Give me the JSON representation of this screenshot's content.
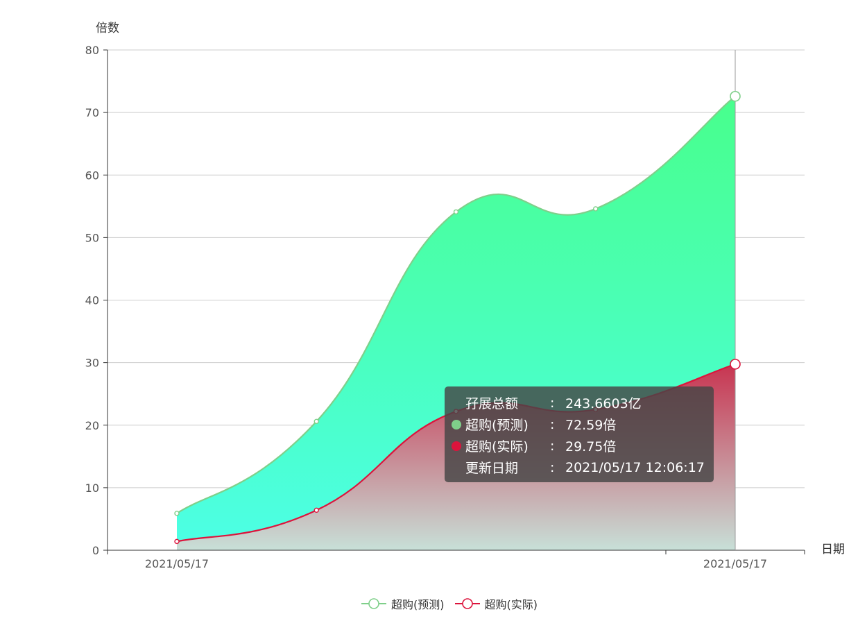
{
  "chart_data": {
    "type": "area",
    "x": [
      "2021/05/17",
      "",
      "",
      "",
      "2021/05/17"
    ],
    "series": [
      {
        "name": "超购(预测)",
        "values": [
          5.9,
          20.6,
          54.1,
          54.6,
          72.59
        ],
        "color": "#7fcf8a",
        "fill_top": "#48ff8c",
        "fill_bottom": "#4cffe6"
      },
      {
        "name": "超购(实际)",
        "values": [
          1.4,
          6.4,
          22.2,
          22.5,
          29.75
        ],
        "color": "#dc143c",
        "fill_top": "#c8314e",
        "fill_bottom": "#c8e0d8"
      }
    ],
    "x_tick_labels": [
      "2021/05/17",
      "2021/05/17"
    ],
    "xlabel": "日期",
    "ylabel": "倍数",
    "ylim": [
      0,
      80
    ],
    "yticks": [
      0,
      10,
      20,
      30,
      40,
      50,
      60,
      70,
      80
    ],
    "grid": true,
    "smooth": true,
    "legend_position": "bottom-center",
    "highlighted_index": 4
  },
  "tooltip": {
    "rows": [
      {
        "label": "孖展总额",
        "sep": ":",
        "value": "243.6603亿",
        "dot": null
      },
      {
        "label": "超购(预测)",
        "sep": ":",
        "value": "72.59倍",
        "dot": "#7fcf8a"
      },
      {
        "label": "超购(实际)",
        "sep": ":",
        "value": "29.75倍",
        "dot": "#dc143c"
      },
      {
        "label": "更新日期",
        "sep": ":",
        "value": "2021/05/17 12:06:17",
        "dot": null
      }
    ]
  },
  "legend": {
    "items": [
      {
        "name": "超购(预测)",
        "color": "#7fcf8a"
      },
      {
        "name": "超购(实际)",
        "color": "#dc143c"
      }
    ]
  }
}
